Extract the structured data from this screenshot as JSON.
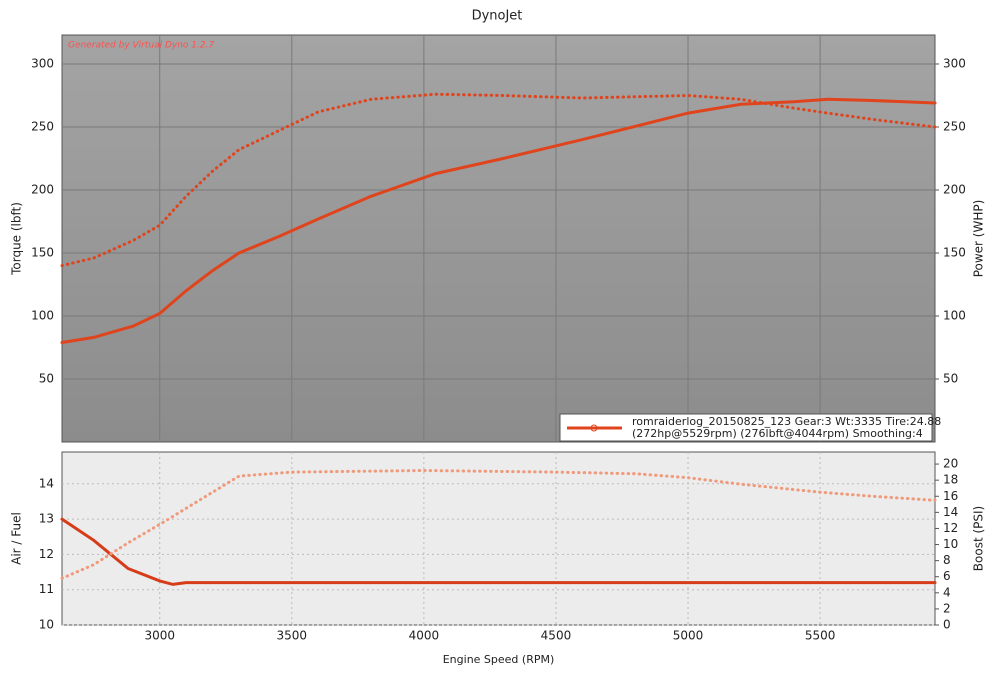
{
  "chart_data": [
    {
      "type": "line",
      "title": "DynoJet",
      "annotation": "Generated by Virtual Dyno 1.2.7",
      "ylabel": "Torque (lbft)",
      "y2label": "Power (WHP)",
      "legend_text": [
        "romraiderlog_20150825_123 Gear:3 Wt:3335 Tire:24.88",
        "(272hp@5529rpm) (276lbft@4044rpm) Smoothing:4"
      ],
      "xlim": [
        2630,
        5935
      ],
      "ylim": [
        0,
        323
      ],
      "yticks": [
        50,
        100,
        150,
        200,
        250,
        300
      ],
      "y2lim": [
        0,
        323
      ],
      "y2ticks": [
        50,
        100,
        150,
        200,
        250,
        300
      ],
      "grid": true,
      "x": [
        2630,
        2750,
        2900,
        3000,
        3100,
        3200,
        3300,
        3450,
        3600,
        3800,
        4044,
        4300,
        4600,
        5000,
        5200,
        5400,
        5529,
        5700,
        5935
      ],
      "series": [
        {
          "color": "#e0441c",
          "style": "dotted",
          "values": [
            140,
            146,
            160,
            172,
            195,
            215,
            232,
            247,
            262,
            272,
            276,
            275,
            273,
            275,
            272,
            265,
            261,
            256,
            250
          ]
        },
        {
          "color": "#e0441c",
          "style": "solid",
          "axis": "y2",
          "values": [
            79,
            83,
            92,
            102,
            120,
            136,
            150,
            163,
            177,
            195,
            213,
            225,
            240,
            261,
            268,
            270,
            272,
            271,
            269
          ]
        }
      ]
    },
    {
      "type": "line",
      "xlabel": "Engine Speed (RPM)",
      "ylabel": "Air / Fuel",
      "y2label": "Boost (PSI)",
      "xlim": [
        2630,
        5935
      ],
      "xticks": [
        3000,
        3500,
        4000,
        4500,
        5000,
        5500
      ],
      "ylim": [
        10,
        14.9
      ],
      "yticks": [
        10,
        11,
        12,
        13,
        14
      ],
      "y2lim": [
        0,
        21.5
      ],
      "y2ticks": [
        0,
        2,
        4,
        6,
        8,
        10,
        12,
        14,
        16,
        18,
        20
      ],
      "grid": true,
      "x": [
        2630,
        2750,
        2880,
        3000,
        3050,
        3100,
        3200,
        3300,
        3500,
        4000,
        4500,
        4800,
        5000,
        5200,
        5500,
        5700,
        5935
      ],
      "series": [
        {
          "color": "#d63c18",
          "style": "solid",
          "values": [
            13.0,
            12.4,
            11.6,
            11.25,
            11.15,
            11.2,
            11.2,
            11.2,
            11.2,
            11.2,
            11.2,
            11.2,
            11.2,
            11.2,
            11.2,
            11.2,
            11.2
          ]
        },
        {
          "color": "#f09a7c",
          "style": "dotted",
          "axis": "y2",
          "values": [
            5.8,
            7.5,
            10.2,
            12.5,
            13.5,
            14.5,
            16.5,
            18.5,
            19.0,
            19.2,
            19.0,
            18.8,
            18.3,
            17.5,
            16.5,
            16.0,
            15.5
          ]
        }
      ]
    }
  ]
}
